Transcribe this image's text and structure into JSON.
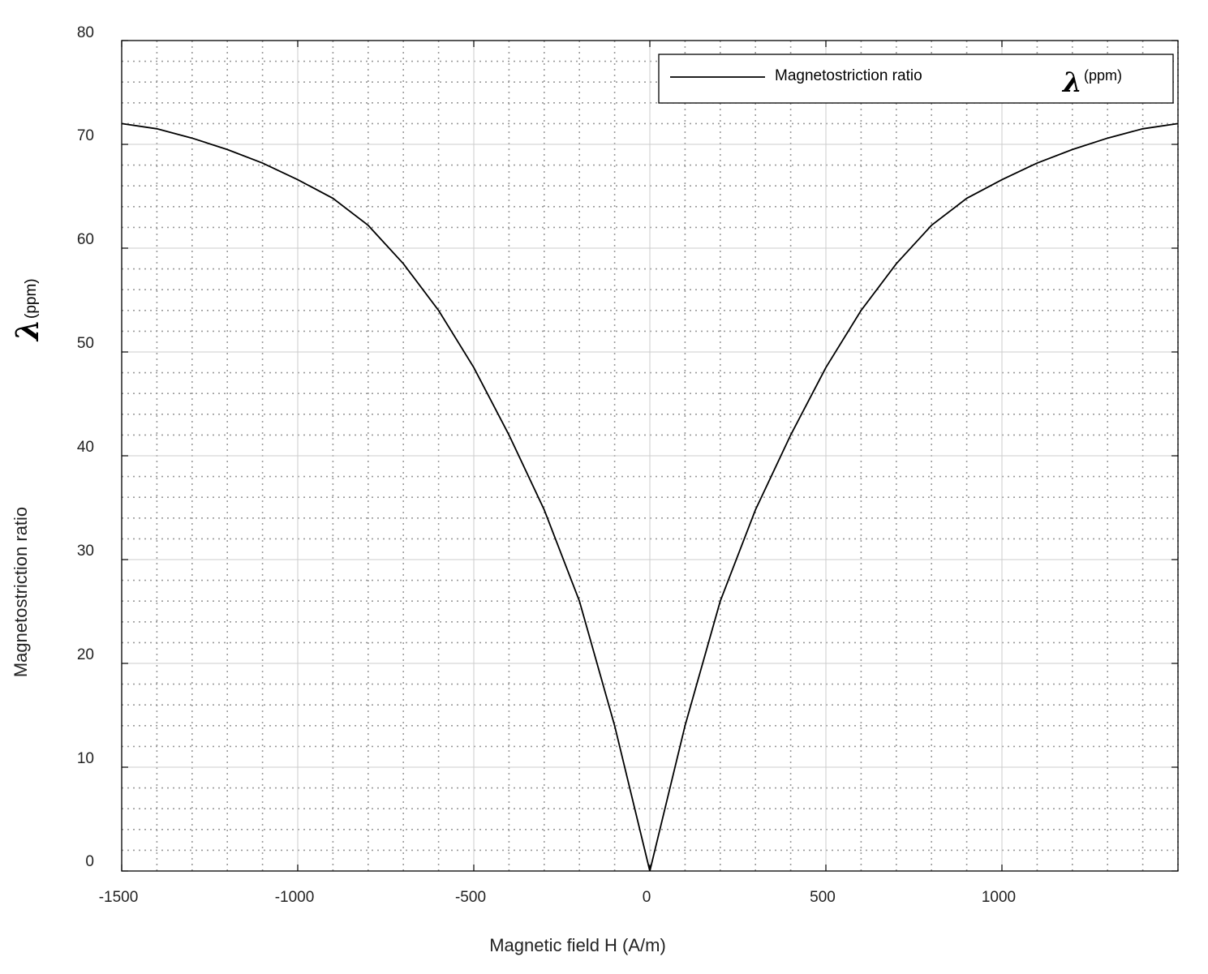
{
  "chart_data": {
    "type": "line",
    "xlabel": "Magnetic field H (A/m)",
    "ylabel": {
      "text": "Magnetostriction ratio",
      "symbol": "λ",
      "unit": "(ppm)"
    },
    "xlim": [
      -1500,
      1500
    ],
    "ylim": [
      0,
      80
    ],
    "xticks": [
      -1500,
      -1000,
      -500,
      0,
      500,
      1000
    ],
    "yticks": [
      0,
      10,
      20,
      30,
      40,
      50,
      60,
      70,
      80
    ],
    "x_minor_step": 100,
    "y_minor_step": 2,
    "grid": true,
    "legend_position": "top-right",
    "legend": {
      "label": "Magnetostriction ratio",
      "symbol": "λ",
      "unit": "(ppm)"
    },
    "series": [
      {
        "name": "Magnetostriction ratio",
        "color": "#000000",
        "x": [
          -1500,
          -1400,
          -1300,
          -1200,
          -1100,
          -1000,
          -900,
          -800,
          -700,
          -600,
          -500,
          -400,
          -300,
          -200,
          -100,
          0,
          100,
          200,
          300,
          400,
          500,
          600,
          700,
          800,
          900,
          1000,
          1100,
          1200,
          1300,
          1400,
          1500
        ],
        "y": [
          72,
          71.5,
          70.6,
          69.5,
          68.2,
          66.6,
          64.8,
          62.2,
          58.5,
          54.0,
          48.5,
          42.0,
          34.8,
          26.0,
          14.0,
          0,
          14.0,
          26.0,
          34.8,
          42.0,
          48.5,
          54.0,
          58.5,
          62.2,
          64.8,
          66.6,
          68.2,
          69.5,
          70.6,
          71.5,
          72
        ]
      }
    ]
  }
}
